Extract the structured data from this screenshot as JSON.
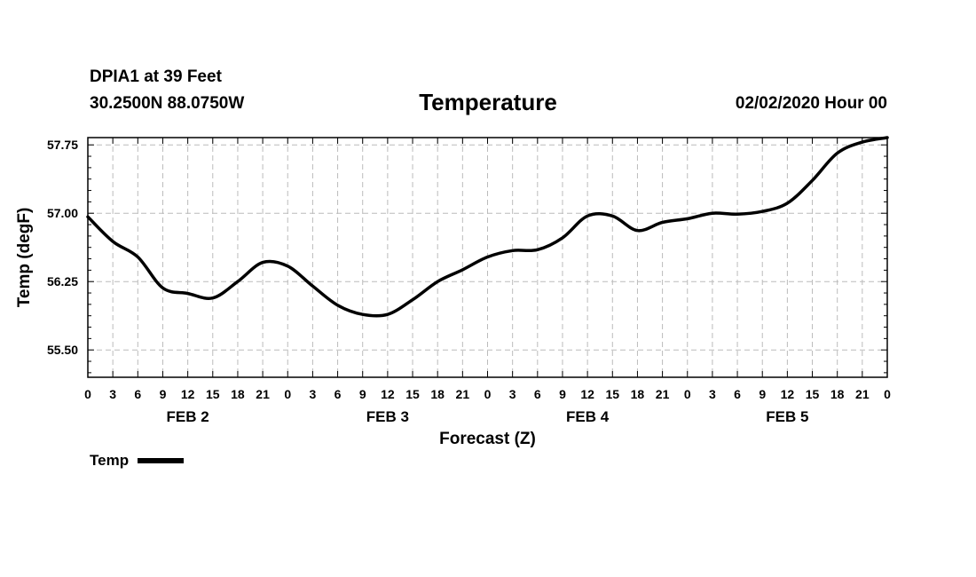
{
  "header": {
    "station": "DPIA1 at 39 Feet",
    "coords": "30.2500N 88.0750W",
    "title": "Temperature",
    "datetime": "02/02/2020 Hour 00"
  },
  "legend": {
    "label": "Temp"
  },
  "colors": {
    "line": "#000000",
    "grid": "#bbbbbb"
  },
  "chart_data": {
    "type": "line",
    "title": "Temperature",
    "xlabel": "Forecast (Z)",
    "ylabel": "Temp (degF)",
    "xlim": [
      0,
      96
    ],
    "ylim": [
      55.2,
      57.83
    ],
    "yticks": [
      55.5,
      56.25,
      57.0,
      57.75
    ],
    "ytick_labels": [
      "55.50",
      "56.25",
      "57.00",
      "57.75"
    ],
    "xtick_labels": [
      "0",
      "3",
      "6",
      "9",
      "12",
      "15",
      "18",
      "21",
      "0",
      "3",
      "6",
      "9",
      "12",
      "15",
      "18",
      "21",
      "0",
      "3",
      "6",
      "9",
      "12",
      "15",
      "18",
      "21",
      "0",
      "3",
      "6",
      "9",
      "12",
      "15",
      "18",
      "21",
      "0"
    ],
    "day_labels": [
      {
        "label": "FEB 2",
        "hour": 12
      },
      {
        "label": "FEB 3",
        "hour": 36
      },
      {
        "label": "FEB 4",
        "hour": 60
      },
      {
        "label": "FEB 5",
        "hour": 84
      }
    ],
    "series": [
      {
        "name": "Temp",
        "x": [
          0,
          3,
          6,
          9,
          12,
          15,
          18,
          21,
          24,
          27,
          30,
          33,
          36,
          39,
          42,
          45,
          48,
          51,
          54,
          57,
          60,
          63,
          66,
          69,
          72,
          75,
          78,
          81,
          84,
          87,
          90,
          93,
          96
        ],
        "values": [
          56.96,
          56.69,
          56.52,
          56.18,
          56.12,
          56.07,
          56.25,
          56.46,
          56.42,
          56.2,
          55.99,
          55.89,
          55.89,
          56.05,
          56.25,
          56.38,
          56.52,
          56.59,
          56.6,
          56.73,
          56.97,
          56.97,
          56.81,
          56.9,
          56.94,
          57.0,
          56.99,
          57.02,
          57.11,
          57.36,
          57.66,
          57.78,
          57.83
        ]
      }
    ]
  }
}
